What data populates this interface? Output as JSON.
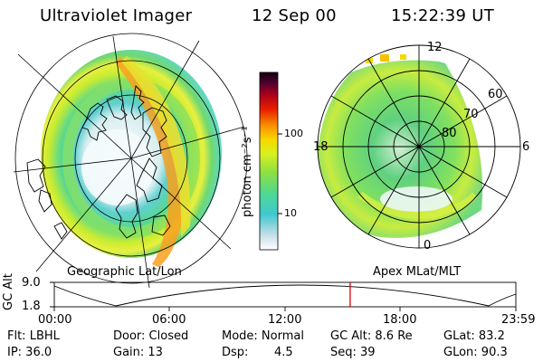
{
  "header": {
    "instrument": "Ultraviolet Imager",
    "date": "12 Sep 00",
    "time": "15:22:39 UT"
  },
  "left_panel": {
    "label": "Geographic Lat/Lon"
  },
  "right_panel": {
    "label": "Apex MLat/MLT",
    "mlt_labels": {
      "top": "12",
      "left": "18",
      "right": "6",
      "bottom": "0"
    },
    "lat_labels": [
      "60",
      "70",
      "80"
    ]
  },
  "colorbar": {
    "unit_label": "photon cm⁻²s⁻¹",
    "ticks": [
      "100",
      "10"
    ],
    "scale": "log",
    "colors": [
      "#ffffff",
      "#c8e0e8",
      "#40c8d0",
      "#50d890",
      "#90e040",
      "#d8f020",
      "#f8d800",
      "#f89000",
      "#e82000",
      "#b00018",
      "#500030",
      "#100010"
    ]
  },
  "timeline": {
    "ylabel": "GC Alt",
    "ytick_top": "9.0",
    "ytick_bottom": "1.8",
    "xticks": [
      "00:00",
      "06:00",
      "12:00",
      "18:00",
      "23:59"
    ],
    "marker_fraction": 0.641,
    "marker_color": "#e00000"
  },
  "info": {
    "filter": "Flt: LBHL",
    "door": "Door: Closed",
    "mode": "Mode: Normal",
    "gc_alt": "GC Alt: 8.6 Re",
    "glat": "GLat: 83.2",
    "ip": "IP: 36.0",
    "gain": "Gain: 13",
    "dsp_label": "Dsp:",
    "dsp_value": "4.5",
    "seq": "Seq: 39",
    "glon": "GLon: 90.3"
  }
}
